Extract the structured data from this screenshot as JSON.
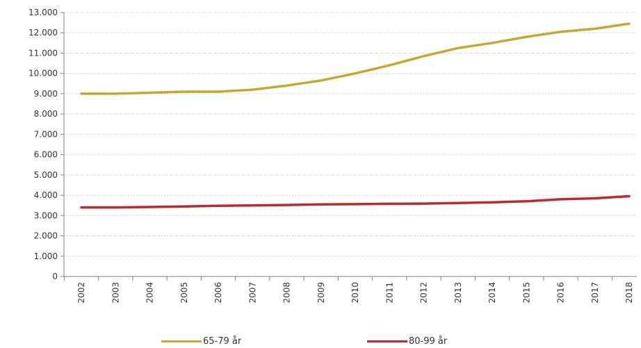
{
  "chart_data": {
    "type": "line",
    "x": [
      "2002",
      "2003",
      "2004",
      "2005",
      "2006",
      "2007",
      "2008",
      "2009",
      "2010",
      "2011",
      "2012",
      "2013",
      "2014",
      "2015",
      "2016",
      "2017",
      "2018"
    ],
    "yticks": [
      "0",
      "1.000",
      "2.000",
      "3.000",
      "4.000",
      "5.000",
      "6.000",
      "7.000",
      "8.000",
      "9.000",
      "10.000",
      "11.000",
      "12.000",
      "13.000"
    ],
    "ylim": [
      0,
      13000
    ],
    "grid": true,
    "legend_position": "bottom",
    "series": [
      {
        "name": "65-79 år",
        "color": "#c8a82c",
        "values": [
          9000,
          9000,
          9050,
          9100,
          9100,
          9200,
          9400,
          9650,
          10000,
          10400,
          10850,
          11250,
          11500,
          11800,
          12050,
          12200,
          12450
        ]
      },
      {
        "name": "80-99 år",
        "color": "#c0282d",
        "values": [
          3400,
          3400,
          3420,
          3450,
          3480,
          3500,
          3520,
          3550,
          3560,
          3580,
          3590,
          3620,
          3650,
          3700,
          3800,
          3850,
          3950
        ]
      }
    ]
  }
}
